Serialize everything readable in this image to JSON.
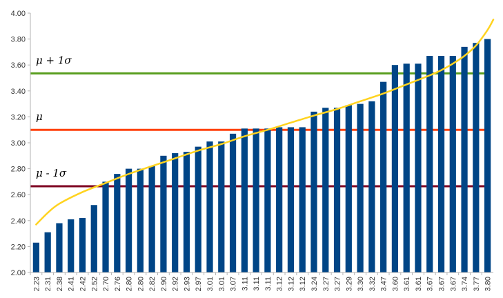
{
  "chart_data": {
    "type": "bar",
    "categories": [
      "2.23",
      "2.31",
      "2.38",
      "2.41",
      "2.42",
      "2.52",
      "2.70",
      "2.76",
      "2.80",
      "2.80",
      "2.82",
      "2.90",
      "2.92",
      "2.93",
      "2.97",
      "3.01",
      "3.01",
      "3.07",
      "3.11",
      "3.11",
      "3.11",
      "3.12",
      "3.12",
      "3.12",
      "3.24",
      "3.27",
      "3.27",
      "3.29",
      "3.30",
      "3.32",
      "3.47",
      "3.60",
      "3.61",
      "3.61",
      "3.67",
      "3.67",
      "3.67",
      "3.74",
      "3.77",
      "3.80"
    ],
    "values": [
      2.23,
      2.31,
      2.38,
      2.41,
      2.42,
      2.52,
      2.7,
      2.76,
      2.8,
      2.8,
      2.82,
      2.9,
      2.92,
      2.93,
      2.97,
      3.01,
      3.01,
      3.07,
      3.11,
      3.11,
      3.11,
      3.12,
      3.12,
      3.12,
      3.24,
      3.27,
      3.27,
      3.29,
      3.3,
      3.32,
      3.47,
      3.6,
      3.61,
      3.61,
      3.67,
      3.67,
      3.67,
      3.74,
      3.77,
      3.8
    ],
    "ylim": [
      2.0,
      4.0
    ],
    "yticks": [
      "2.00",
      "2.20",
      "2.40",
      "2.60",
      "2.80",
      "3.00",
      "3.20",
      "3.40",
      "3.60",
      "3.80",
      "4.00"
    ],
    "ytick_values": [
      2.0,
      2.2,
      2.4,
      2.6,
      2.8,
      3.0,
      3.2,
      3.4,
      3.6,
      3.8,
      4.0
    ],
    "grid": false,
    "colors": {
      "bars": "#004586",
      "curve": "#ffd320",
      "axis": "#b3b3b3"
    },
    "reference_lines": [
      {
        "label": "μ + 1σ",
        "value": 3.535,
        "color": "#579d1c"
      },
      {
        "label": "μ",
        "value": 3.1,
        "color": "#ff420e"
      },
      {
        "label": "μ - 1σ",
        "value": 2.665,
        "color": "#7e0021"
      }
    ],
    "fit_curve": [
      [
        0,
        2.37
      ],
      [
        1,
        2.46
      ],
      [
        2,
        2.53
      ],
      [
        4,
        2.62
      ],
      [
        6,
        2.69
      ],
      [
        8,
        2.76
      ],
      [
        10,
        2.82
      ],
      [
        12,
        2.88
      ],
      [
        14,
        2.94
      ],
      [
        16,
        2.99
      ],
      [
        18,
        3.05
      ],
      [
        20,
        3.1
      ],
      [
        22,
        3.155
      ],
      [
        24,
        3.21
      ],
      [
        26,
        3.26
      ],
      [
        28,
        3.32
      ],
      [
        30,
        3.38
      ],
      [
        32,
        3.45
      ],
      [
        34,
        3.52
      ],
      [
        35,
        3.56
      ],
      [
        36,
        3.61
      ],
      [
        37,
        3.67
      ],
      [
        38,
        3.75
      ],
      [
        39,
        3.87
      ],
      [
        39.5,
        3.95
      ]
    ]
  }
}
